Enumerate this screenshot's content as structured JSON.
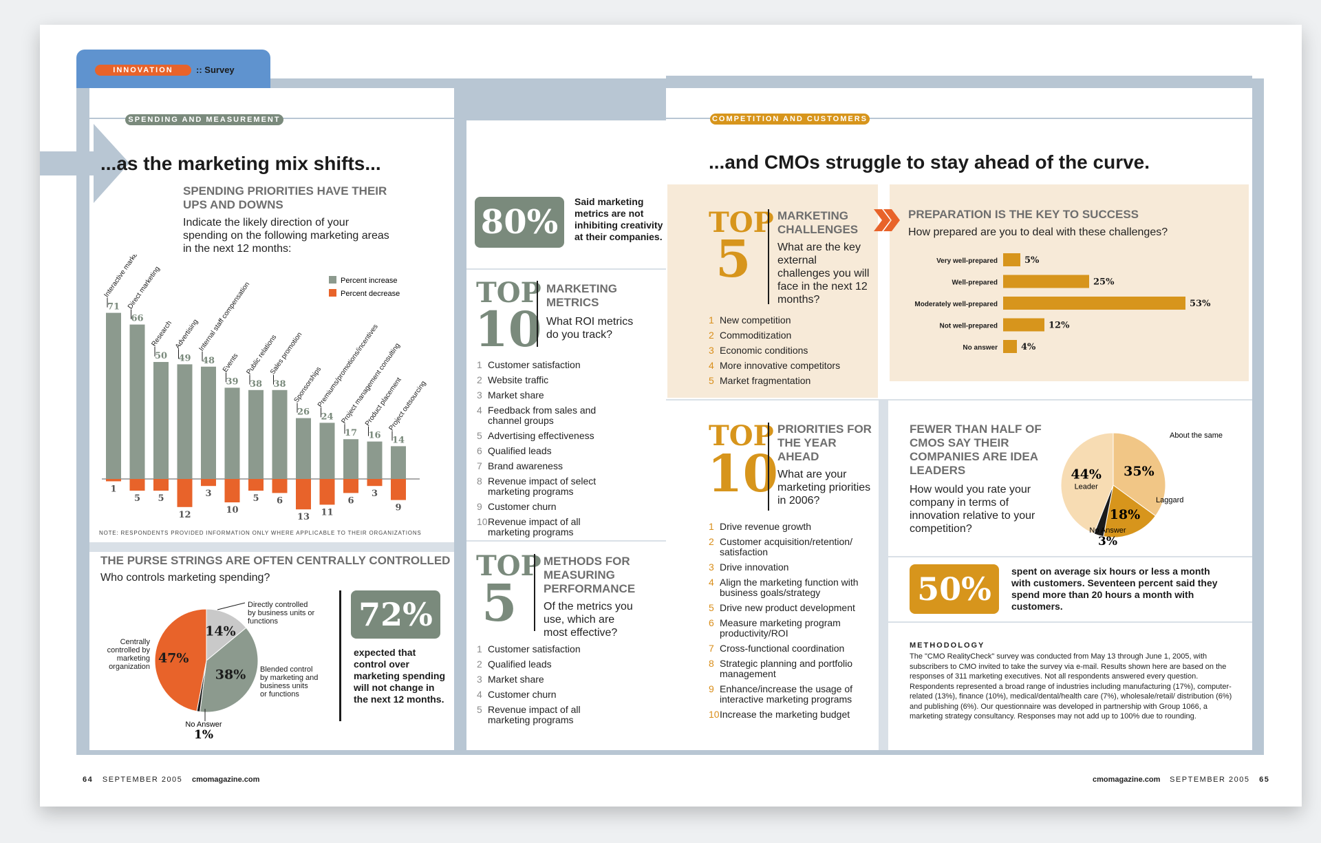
{
  "header": {
    "section_label": "INNOVATION",
    "separator": "::",
    "subsection": "Survey"
  },
  "left": {
    "section_tag": "SPENDING AND MEASUREMENT",
    "headline": "...as the marketing mix shifts...",
    "spending": {
      "title": "SPENDING PRIORITIES HAVE THEIR UPS AND DOWNS",
      "question": "Indicate the likely direction of your spending on the following marketing areas in the next 12 months:",
      "note": "NOTE: RESPONDENTS PROVIDED INFORMATION ONLY WHERE APPLICABLE TO THEIR ORGANIZATIONS"
    },
    "purse": {
      "title": "THE PURSE STRINGS ARE OFTEN CENTRALLY CONTROLLED",
      "question": "Who controls marketing spending?",
      "big_value": "72%",
      "big_text": "expected that control over marketing spending will not change in the next 12 months."
    }
  },
  "middle": {
    "stat": {
      "value": "80%",
      "text": "Said marketing metrics are not inhibiting creativity at their companies."
    },
    "metrics": {
      "top": "TOP",
      "number": "10",
      "title": "MARKETING METRICS",
      "question": "What ROI metrics do you track?",
      "items": [
        "Customer satisfaction",
        "Website traffic",
        "Market share",
        "Feedback from sales and channel groups",
        "Advertising effectiveness",
        "Qualified leads",
        "Brand awareness",
        "Revenue impact of select marketing programs",
        "Customer churn",
        "Revenue impact of all marketing programs"
      ]
    },
    "methods": {
      "top": "TOP",
      "number": "5",
      "title": "METHODS FOR MEASURING PERFORMANCE",
      "question": "Of the metrics you use, which are most effective?",
      "items": [
        "Customer satisfaction",
        "Qualified leads",
        "Market share",
        "Customer churn",
        "Revenue impact of all marketing programs"
      ]
    }
  },
  "right": {
    "section_tag": "COMPETITION AND CUSTOMERS",
    "headline": "...and CMOs struggle to stay ahead of the curve.",
    "challenges": {
      "top": "TOP",
      "number": "5",
      "title": "MARKETING CHALLENGES",
      "question": "What are the key external challenges you will face in the next 12 months?",
      "items": [
        "New competition",
        "Commoditization",
        "Economic conditions",
        "More innovative competitors",
        "Market fragmentation"
      ]
    },
    "preparation": {
      "title": "PREPARATION IS THE KEY TO SUCCESS",
      "question": "How prepared are you to deal with these challenges?"
    },
    "priorities": {
      "top": "TOP",
      "number": "10",
      "title": "PRIORITIES FOR THE YEAR AHEAD",
      "question": "What are your marketing priorities in 2006?",
      "items": [
        "Drive revenue growth",
        "Customer acquisition/retention/ satisfaction",
        "Drive innovation",
        "Align the marketing function with business goals/strategy",
        "Drive new product development",
        "Measure marketing program productivity/ROI",
        "Cross-functional coordination",
        "Strategic planning and portfolio management",
        "Enhance/increase the usage of interactive marketing programs",
        "Increase the marketing budget"
      ]
    },
    "leaders": {
      "title": "FEWER THAN HALF OF CMOs SAY THEIR COMPANIES ARE IDEA LEADERS",
      "question": "How would you rate your company in terms of innovation relative to your competition?"
    },
    "stat": {
      "value": "50%",
      "text": "spent on average six hours or less a month with customers. Seventeen percent said they spend more than 20 hours a month with customers."
    },
    "methodology": {
      "title": "METHODOLOGY",
      "text": "The \"CMO RealityCheck\" survey was conducted from May 13 through June 1, 2005, with subscribers to CMO invited to take the survey via e-mail. Results shown here are based on the responses of 311 marketing executives. Not all respondents answered every question. Respondents represented a broad range of industries including manufacturing (17%), computer-related (13%), finance (10%), medical/dental/health care (7%), wholesale/retail/ distribution (6%) and publishing (6%). Our questionnaire was developed in partnership with Group 1066, a marketing strategy consultancy. Responses may not add up to 100% due to rounding."
    }
  },
  "footer": {
    "left_page": "64",
    "left_date": "SEPTEMBER 2005",
    "left_site": "cmomagazine.com",
    "right_site": "cmomagazine.com",
    "right_date": "SEPTEMBER 2005",
    "right_page": "65"
  },
  "colors": {
    "gray_bar": "#8c9a8e",
    "orange_bar": "#e8632a",
    "gold": "#d7951c",
    "beige": "#f7ead8",
    "blue_frame": "#b8c6d3",
    "tab_blue": "#5f93cf"
  },
  "chart_data": [
    {
      "type": "bar",
      "categories": [
        "Interactive marketing",
        "Direct marketing",
        "Research",
        "Advertising",
        "Internal staff compensation",
        "Events",
        "Public relations",
        "Sales promotion",
        "Sponsorships",
        "Premiums/promotions/incentives",
        "Project management consulting",
        "Product placement",
        "Project outsourcing"
      ],
      "series": [
        {
          "name": "Percent increase",
          "values": [
            71,
            66,
            50,
            49,
            48,
            39,
            38,
            38,
            26,
            24,
            17,
            16,
            14
          ]
        },
        {
          "name": "Percent decrease",
          "values": [
            1,
            5,
            5,
            12,
            3,
            10,
            5,
            6,
            13,
            11,
            6,
            3,
            9
          ]
        }
      ],
      "legend": "top-right"
    },
    {
      "type": "pie",
      "labels": [
        "Centrally controlled by marketing organization",
        "Directly controlled by business units or functions",
        "Blended control by marketing and business units or functions",
        "No Answer"
      ],
      "values": [
        47,
        14,
        38,
        1
      ]
    },
    {
      "type": "bar",
      "categories": [
        "Very well-prepared",
        "Well-prepared",
        "Moderately well-prepared",
        "Not well-prepared",
        "No answer"
      ],
      "values": [
        5,
        25,
        53,
        12,
        4
      ],
      "orientation": "horizontal"
    },
    {
      "type": "pie",
      "labels": [
        "About the same",
        "Laggard",
        "No Answer",
        "Leader"
      ],
      "values": [
        35,
        18,
        3,
        44
      ],
      "label_extra": {
        "Leader": "Leader",
        "Laggard": "Laggard"
      }
    }
  ]
}
